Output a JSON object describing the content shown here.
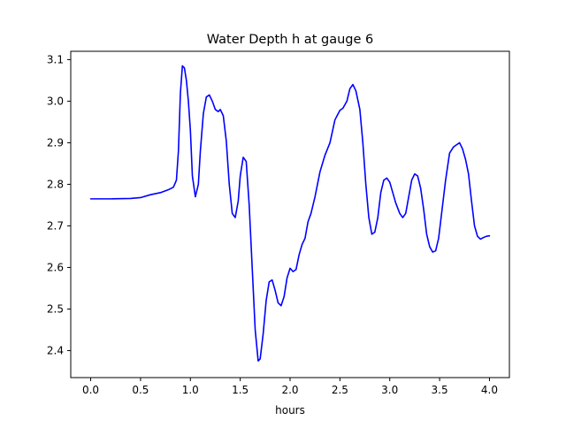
{
  "chart_data": {
    "type": "line",
    "title": "Water Depth h at gauge 6",
    "xlabel": "hours",
    "ylabel": "",
    "xlim": [
      -0.2,
      4.2
    ],
    "ylim": [
      2.335,
      3.12
    ],
    "grid": false,
    "legend": "none",
    "xticks": [
      0.0,
      0.5,
      1.0,
      1.5,
      2.0,
      2.5,
      3.0,
      3.5,
      4.0
    ],
    "xtick_labels": [
      "0.0",
      "0.5",
      "1.0",
      "1.5",
      "2.0",
      "2.5",
      "3.0",
      "3.5",
      "4.0"
    ],
    "yticks": [
      2.4,
      2.5,
      2.6,
      2.7,
      2.8,
      2.9,
      3.0,
      3.1
    ],
    "ytick_labels": [
      "2.4",
      "2.5",
      "2.6",
      "2.7",
      "2.8",
      "2.9",
      "3.0",
      "3.1"
    ],
    "series": [
      {
        "color": "#0000ff",
        "x": [
          0.0,
          0.2,
          0.4,
          0.5,
          0.6,
          0.7,
          0.78,
          0.83,
          0.86,
          0.88,
          0.9,
          0.92,
          0.94,
          0.96,
          0.98,
          1.0,
          1.02,
          1.05,
          1.08,
          1.1,
          1.13,
          1.16,
          1.19,
          1.22,
          1.25,
          1.28,
          1.3,
          1.33,
          1.36,
          1.39,
          1.42,
          1.45,
          1.48,
          1.5,
          1.53,
          1.56,
          1.59,
          1.62,
          1.65,
          1.68,
          1.7,
          1.73,
          1.76,
          1.79,
          1.82,
          1.85,
          1.88,
          1.91,
          1.94,
          1.97,
          2.0,
          2.03,
          2.06,
          2.09,
          2.12,
          2.15,
          2.18,
          2.21,
          2.25,
          2.3,
          2.35,
          2.4,
          2.45,
          2.5,
          2.53,
          2.57,
          2.6,
          2.63,
          2.66,
          2.7,
          2.73,
          2.76,
          2.79,
          2.82,
          2.85,
          2.88,
          2.91,
          2.94,
          2.97,
          3.0,
          3.03,
          3.06,
          3.1,
          3.13,
          3.16,
          3.19,
          3.22,
          3.25,
          3.28,
          3.31,
          3.34,
          3.37,
          3.4,
          3.43,
          3.46,
          3.49,
          3.52,
          3.56,
          3.6,
          3.64,
          3.67,
          3.7,
          3.73,
          3.76,
          3.79,
          3.82,
          3.85,
          3.88,
          3.91,
          3.94,
          3.97,
          4.0
        ],
        "y": [
          2.765,
          2.765,
          2.766,
          2.768,
          2.775,
          2.78,
          2.787,
          2.793,
          2.81,
          2.88,
          3.02,
          3.085,
          3.08,
          3.05,
          3.0,
          2.93,
          2.82,
          2.77,
          2.8,
          2.88,
          2.97,
          3.01,
          3.015,
          3.0,
          2.98,
          2.975,
          2.98,
          2.965,
          2.905,
          2.8,
          2.73,
          2.72,
          2.76,
          2.82,
          2.865,
          2.855,
          2.75,
          2.6,
          2.45,
          2.375,
          2.38,
          2.44,
          2.52,
          2.565,
          2.57,
          2.545,
          2.515,
          2.508,
          2.53,
          2.575,
          2.598,
          2.59,
          2.595,
          2.63,
          2.655,
          2.67,
          2.71,
          2.73,
          2.77,
          2.83,
          2.87,
          2.9,
          2.955,
          2.978,
          2.983,
          3.0,
          3.03,
          3.04,
          3.025,
          2.98,
          2.9,
          2.8,
          2.72,
          2.68,
          2.685,
          2.72,
          2.78,
          2.81,
          2.815,
          2.805,
          2.78,
          2.755,
          2.73,
          2.72,
          2.73,
          2.77,
          2.81,
          2.825,
          2.82,
          2.79,
          2.74,
          2.68,
          2.65,
          2.637,
          2.64,
          2.67,
          2.73,
          2.81,
          2.875,
          2.89,
          2.895,
          2.9,
          2.885,
          2.86,
          2.825,
          2.76,
          2.7,
          2.675,
          2.668,
          2.672,
          2.675,
          2.676
        ]
      }
    ]
  }
}
